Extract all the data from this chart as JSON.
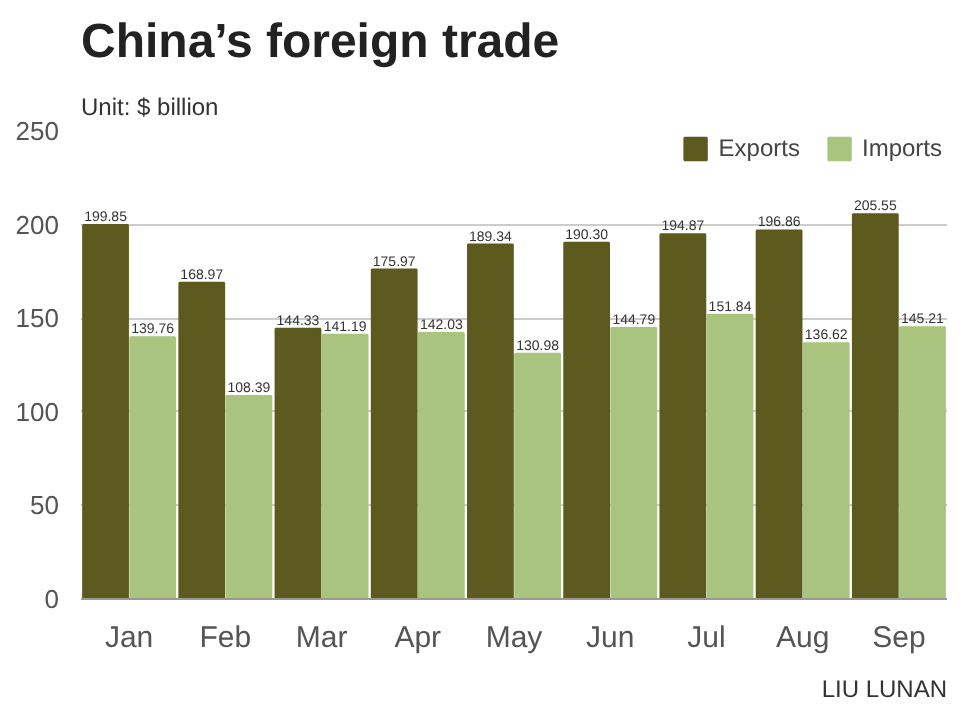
{
  "chart_data": {
    "type": "bar",
    "title": "China’s foreign trade",
    "subtitle": "Unit: $ billion",
    "categories": [
      "Jan",
      "Feb",
      "Mar",
      "Apr",
      "May",
      "Jun",
      "Jul",
      "Aug",
      "Sep"
    ],
    "series": [
      {
        "name": "Exports",
        "color": "#5c5a1f",
        "values": [
          199.85,
          168.97,
          144.33,
          175.97,
          189.34,
          190.3,
          194.87,
          196.86,
          205.55
        ],
        "value_labels": [
          "199.85",
          "168.97",
          "144.33",
          "175.97",
          "189.34",
          "190.30",
          "194.87",
          "196.86",
          "205.55"
        ]
      },
      {
        "name": "Imports",
        "color": "#a8c47e",
        "values": [
          139.76,
          108.39,
          141.19,
          142.03,
          130.98,
          144.79,
          151.84,
          136.62,
          145.21
        ],
        "value_labels": [
          "139.76",
          "108.39",
          "141.19",
          "142.03",
          "130.98",
          "144.79",
          "151.84",
          "136.62",
          "145.21"
        ]
      }
    ],
    "ylim": [
      0,
      250
    ],
    "yticks": [
      0,
      50,
      100,
      150,
      200,
      250
    ],
    "grid": "y",
    "legend": "top right",
    "annotations": [
      "LIU LUNAN"
    ]
  }
}
